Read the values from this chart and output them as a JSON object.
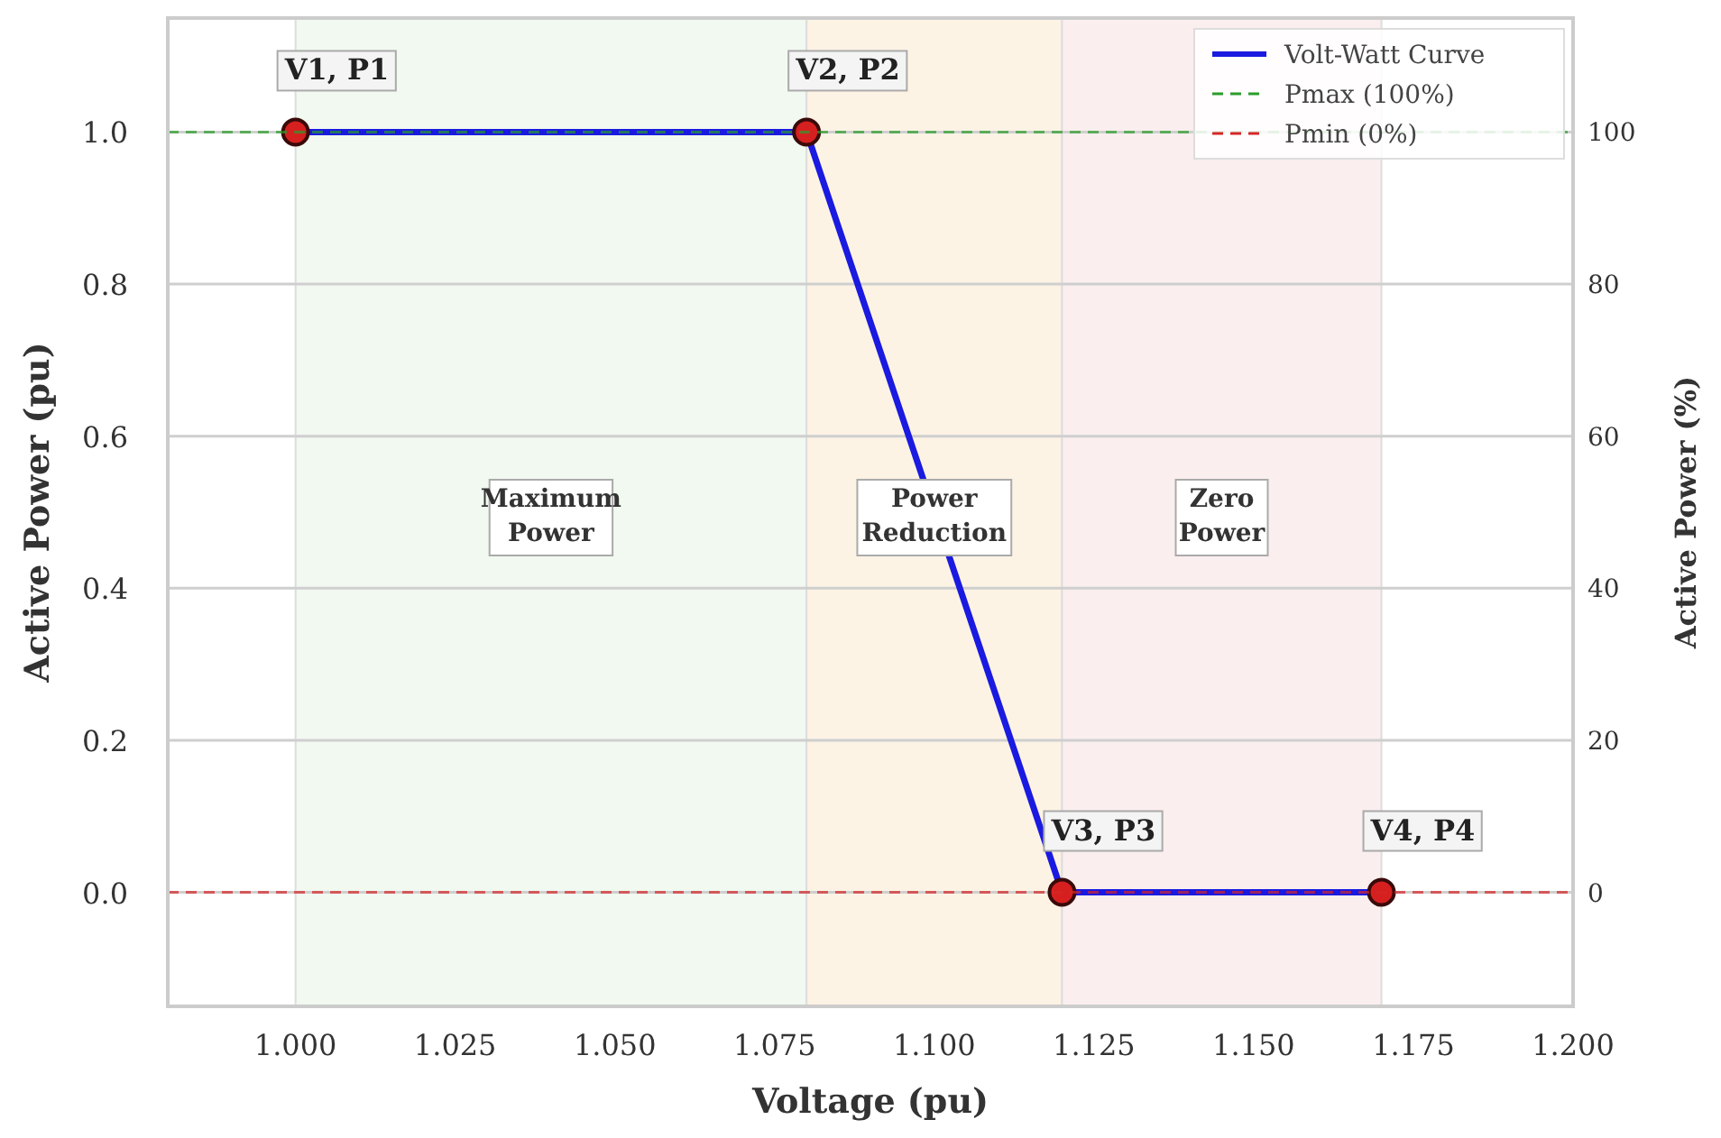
{
  "chart_data": {
    "type": "line",
    "xlabel": "Voltage (pu)",
    "ylabel": "Active Power (pu)",
    "y2label": "Active Power (%)",
    "x": [
      1.0,
      1.08,
      1.12,
      1.17
    ],
    "series": [
      {
        "name": "Volt-Watt Curve",
        "color": "#1a1ae0",
        "values": [
          1.0,
          1.0,
          0.0,
          0.0
        ]
      }
    ],
    "xlim": [
      0.98,
      1.2
    ],
    "xticks": [
      {
        "value": 1.0,
        "label": "1.000"
      },
      {
        "value": 1.025,
        "label": "1.025"
      },
      {
        "value": 1.05,
        "label": "1.050"
      },
      {
        "value": 1.075,
        "label": "1.075"
      },
      {
        "value": 1.1,
        "label": "1.100"
      },
      {
        "value": 1.125,
        "label": "1.125"
      },
      {
        "value": 1.15,
        "label": "1.150"
      },
      {
        "value": 1.175,
        "label": "1.175"
      },
      {
        "value": 1.2,
        "label": "1.200"
      }
    ],
    "ylim": [
      -0.15,
      1.15
    ],
    "yticks": [
      {
        "value": 0,
        "label": "0.0"
      },
      {
        "value": 0.2,
        "label": "0.2"
      },
      {
        "value": 0.4,
        "label": "0.4"
      },
      {
        "value": 0.6,
        "label": "0.6"
      },
      {
        "value": 0.8,
        "label": "0.8"
      },
      {
        "value": 1.0,
        "label": "1.0"
      }
    ],
    "y2lim": [
      -15,
      115
    ],
    "y2ticks": [
      0,
      20,
      40,
      60,
      80,
      100
    ],
    "ref_lines": [
      {
        "axis": "y",
        "value": 1.0,
        "label": "Pmax (100%)",
        "color": "#2a9d2a",
        "line_style": "dashed"
      },
      {
        "axis": "y",
        "value": 0.0,
        "label": "Pmin (0%)",
        "color": "#d62728",
        "line_style": "dashed"
      }
    ],
    "bands": [
      {
        "axis": "x",
        "from": 1.0,
        "to": 1.08,
        "label": "Maximum\nPower",
        "color": "#f1f9f0"
      },
      {
        "axis": "x",
        "from": 1.08,
        "to": 1.12,
        "label": "Power\nReduction",
        "color": "#fdf3e4"
      },
      {
        "axis": "x",
        "from": 1.12,
        "to": 1.17,
        "label": "Zero\nPower",
        "color": "#fbeeee"
      }
    ],
    "annotations": [
      {
        "text": "V1, P1",
        "x": 1.0,
        "y": 1.0
      },
      {
        "text": "V2, P2",
        "x": 1.08,
        "y": 1.0
      },
      {
        "text": "V3, P3",
        "x": 1.12,
        "y": 0.0
      },
      {
        "text": "V4, P4",
        "x": 1.17,
        "y": 0.0
      }
    ],
    "grid": "y",
    "legend": "top right",
    "marker": "circle",
    "line_style": "solid"
  }
}
